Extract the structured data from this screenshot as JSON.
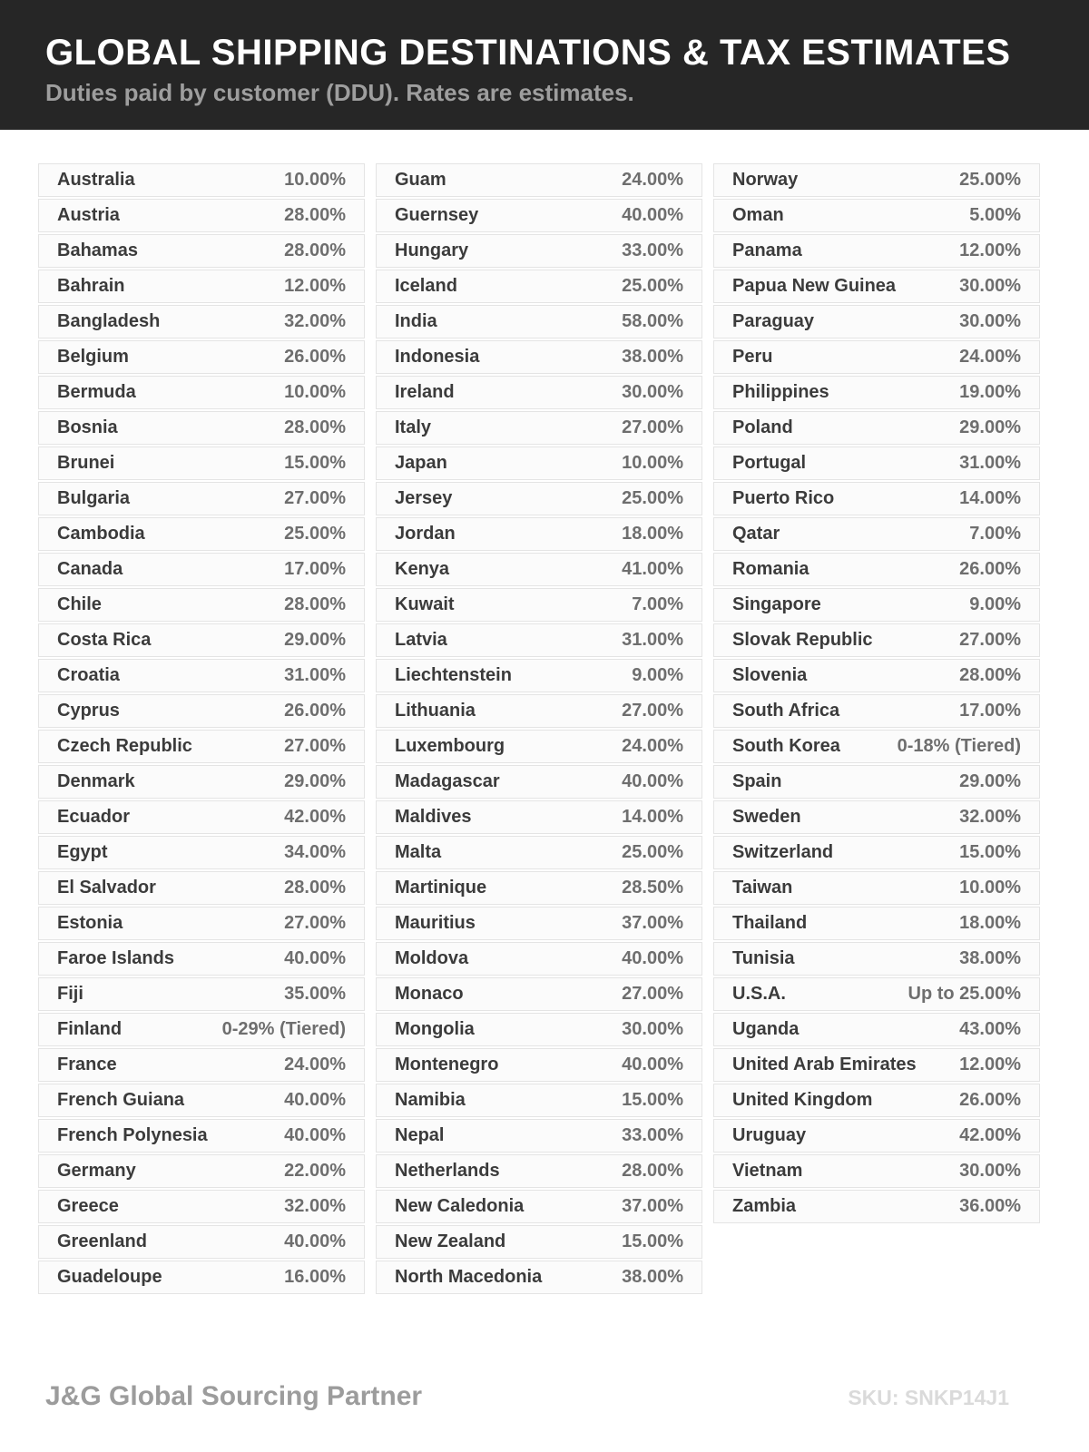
{
  "header": {
    "title": "GLOBAL SHIPPING DESTINATIONS & TAX ESTIMATES",
    "subtitle": "Duties paid by customer (DDU). Rates are estimates."
  },
  "table": {
    "columns": [
      {
        "rows": [
          {
            "country": "Australia",
            "rate": "10.00%"
          },
          {
            "country": "Austria",
            "rate": "28.00%"
          },
          {
            "country": "Bahamas",
            "rate": "28.00%"
          },
          {
            "country": "Bahrain",
            "rate": "12.00%"
          },
          {
            "country": "Bangladesh",
            "rate": "32.00%"
          },
          {
            "country": "Belgium",
            "rate": "26.00%"
          },
          {
            "country": "Bermuda",
            "rate": "10.00%"
          },
          {
            "country": "Bosnia",
            "rate": "28.00%"
          },
          {
            "country": "Brunei",
            "rate": "15.00%"
          },
          {
            "country": "Bulgaria",
            "rate": "27.00%"
          },
          {
            "country": "Cambodia",
            "rate": "25.00%"
          },
          {
            "country": "Canada",
            "rate": "17.00%"
          },
          {
            "country": "Chile",
            "rate": "28.00%"
          },
          {
            "country": "Costa Rica",
            "rate": "29.00%"
          },
          {
            "country": "Croatia",
            "rate": "31.00%"
          },
          {
            "country": "Cyprus",
            "rate": "26.00%"
          },
          {
            "country": "Czech Republic",
            "rate": "27.00%"
          },
          {
            "country": "Denmark",
            "rate": "29.00%"
          },
          {
            "country": "Ecuador",
            "rate": "42.00%"
          },
          {
            "country": "Egypt",
            "rate": "34.00%"
          },
          {
            "country": "El Salvador",
            "rate": "28.00%"
          },
          {
            "country": "Estonia",
            "rate": "27.00%"
          },
          {
            "country": "Faroe Islands",
            "rate": "40.00%"
          },
          {
            "country": "Fiji",
            "rate": "35.00%"
          },
          {
            "country": "Finland",
            "rate": "0-29% (Tiered)"
          },
          {
            "country": "France",
            "rate": "24.00%"
          },
          {
            "country": "French Guiana",
            "rate": "40.00%"
          },
          {
            "country": "French Polynesia",
            "rate": "40.00%"
          },
          {
            "country": "Germany",
            "rate": "22.00%"
          },
          {
            "country": "Greece",
            "rate": "32.00%"
          },
          {
            "country": "Greenland",
            "rate": "40.00%"
          },
          {
            "country": "Guadeloupe",
            "rate": "16.00%"
          }
        ]
      },
      {
        "rows": [
          {
            "country": "Guam",
            "rate": "24.00%"
          },
          {
            "country": "Guernsey",
            "rate": "40.00%"
          },
          {
            "country": "Hungary",
            "rate": "33.00%"
          },
          {
            "country": "Iceland",
            "rate": "25.00%"
          },
          {
            "country": "India",
            "rate": "58.00%"
          },
          {
            "country": "Indonesia",
            "rate": "38.00%"
          },
          {
            "country": "Ireland",
            "rate": "30.00%"
          },
          {
            "country": "Italy",
            "rate": "27.00%"
          },
          {
            "country": "Japan",
            "rate": "10.00%"
          },
          {
            "country": "Jersey",
            "rate": "25.00%"
          },
          {
            "country": "Jordan",
            "rate": "18.00%"
          },
          {
            "country": "Kenya",
            "rate": "41.00%"
          },
          {
            "country": "Kuwait",
            "rate": "7.00%"
          },
          {
            "country": "Latvia",
            "rate": "31.00%"
          },
          {
            "country": "Liechtenstein",
            "rate": "9.00%"
          },
          {
            "country": "Lithuania",
            "rate": "27.00%"
          },
          {
            "country": "Luxembourg",
            "rate": "24.00%"
          },
          {
            "country": "Madagascar",
            "rate": "40.00%"
          },
          {
            "country": "Maldives",
            "rate": "14.00%"
          },
          {
            "country": "Malta",
            "rate": "25.00%"
          },
          {
            "country": "Martinique",
            "rate": "28.50%"
          },
          {
            "country": "Mauritius",
            "rate": "37.00%"
          },
          {
            "country": "Moldova",
            "rate": "40.00%"
          },
          {
            "country": "Monaco",
            "rate": "27.00%"
          },
          {
            "country": "Mongolia",
            "rate": "30.00%"
          },
          {
            "country": "Montenegro",
            "rate": "40.00%"
          },
          {
            "country": "Namibia",
            "rate": "15.00%"
          },
          {
            "country": "Nepal",
            "rate": "33.00%"
          },
          {
            "country": "Netherlands",
            "rate": "28.00%"
          },
          {
            "country": "New Caledonia",
            "rate": "37.00%"
          },
          {
            "country": "New Zealand",
            "rate": "15.00%"
          },
          {
            "country": "North Macedonia",
            "rate": "38.00%"
          }
        ]
      },
      {
        "rows": [
          {
            "country": "Norway",
            "rate": "25.00%"
          },
          {
            "country": "Oman",
            "rate": "5.00%"
          },
          {
            "country": "Panama",
            "rate": "12.00%"
          },
          {
            "country": "Papua New Guinea",
            "rate": "30.00%"
          },
          {
            "country": "Paraguay",
            "rate": "30.00%"
          },
          {
            "country": "Peru",
            "rate": "24.00%"
          },
          {
            "country": "Philippines",
            "rate": "19.00%"
          },
          {
            "country": "Poland",
            "rate": "29.00%"
          },
          {
            "country": "Portugal",
            "rate": "31.00%"
          },
          {
            "country": "Puerto Rico",
            "rate": "14.00%"
          },
          {
            "country": "Qatar",
            "rate": "7.00%"
          },
          {
            "country": "Romania",
            "rate": "26.00%"
          },
          {
            "country": "Singapore",
            "rate": "9.00%"
          },
          {
            "country": "Slovak Republic",
            "rate": "27.00%"
          },
          {
            "country": "Slovenia",
            "rate": "28.00%"
          },
          {
            "country": "South Africa",
            "rate": "17.00%"
          },
          {
            "country": "South Korea",
            "rate": "0-18% (Tiered)"
          },
          {
            "country": "Spain",
            "rate": "29.00%"
          },
          {
            "country": "Sweden",
            "rate": "32.00%"
          },
          {
            "country": "Switzerland",
            "rate": "15.00%"
          },
          {
            "country": "Taiwan",
            "rate": "10.00%"
          },
          {
            "country": "Thailand",
            "rate": "18.00%"
          },
          {
            "country": "Tunisia",
            "rate": "38.00%"
          },
          {
            "country": "U.S.A.",
            "rate": "Up to 25.00%"
          },
          {
            "country": "Uganda",
            "rate": "43.00%"
          },
          {
            "country": "United Arab Emirates",
            "rate": "12.00%"
          },
          {
            "country": "United Kingdom",
            "rate": "26.00%"
          },
          {
            "country": "Uruguay",
            "rate": "42.00%"
          },
          {
            "country": "Vietnam",
            "rate": "30.00%"
          },
          {
            "country": "Zambia",
            "rate": "36.00%"
          }
        ]
      }
    ]
  },
  "footer": {
    "brand": "J&G Global Sourcing Partner",
    "sku": "SKU: SNKP14J1"
  },
  "colors": {
    "header_bg": "#262626",
    "title_text": "#ffffff",
    "subtitle_text": "#9e9e9e",
    "row_bg": "#fbfbfb",
    "row_border": "#e4e4e4",
    "country_text": "#3b3b3b",
    "rate_text": "#6e6e6e",
    "brand_text": "#9c9c9c",
    "sku_text": "#dadada"
  }
}
